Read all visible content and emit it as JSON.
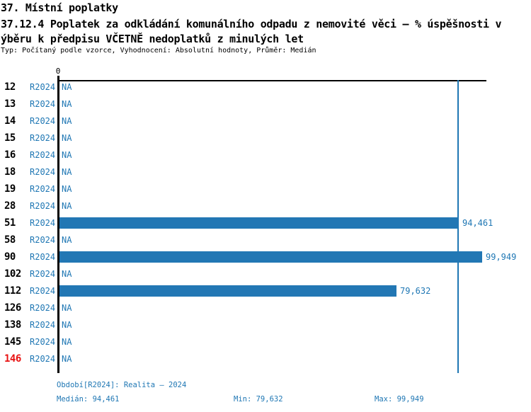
{
  "title": {
    "line1": "37. Místní poplatky",
    "line2": "37.12.4 Poplatek za odkládání komunálního odpadu z nemovité věci – % úspěšnosti v",
    "line3": "ýběru k předpisu VČETNĚ nedoplatků z minulých let",
    "subtitle": "Typ: Počítaný podle vzorce, Vyhodnocení: Absolutní hodnoty, Průměr: Medián"
  },
  "chart_data": {
    "type": "bar",
    "orientation": "horizontal",
    "axis_zero_label": "0",
    "xlim": [
      0,
      100000
    ],
    "period": "R2024",
    "categories": [
      "12",
      "13",
      "14",
      "15",
      "16",
      "18",
      "19",
      "28",
      "51",
      "58",
      "90",
      "102",
      "112",
      "126",
      "138",
      "145",
      "146"
    ],
    "values": [
      null,
      null,
      null,
      null,
      null,
      null,
      null,
      null,
      94461,
      null,
      99949,
      null,
      79632,
      null,
      null,
      null,
      null
    ],
    "value_labels": [
      "NA",
      "NA",
      "NA",
      "NA",
      "NA",
      "NA",
      "NA",
      "NA",
      "94,461",
      "NA",
      "99,949",
      "NA",
      "79,632",
      "NA",
      "NA",
      "NA",
      "NA"
    ],
    "highlighted_category": "146",
    "median_line_value": 94461,
    "stats": {
      "median": 94461,
      "min": 79632,
      "max": 99949
    },
    "grid": false,
    "legend_position": "none"
  },
  "footer": {
    "period_label": "Období[R2024]: Realita – 2024",
    "median_label": "Medián: 94,461",
    "min_label": "Min: 79,632",
    "max_label": "Max: 99,949"
  },
  "colors": {
    "bar": "#2277B4",
    "accent_text": "#1F77B4",
    "highlight": "#E81111",
    "axis": "#000000"
  }
}
